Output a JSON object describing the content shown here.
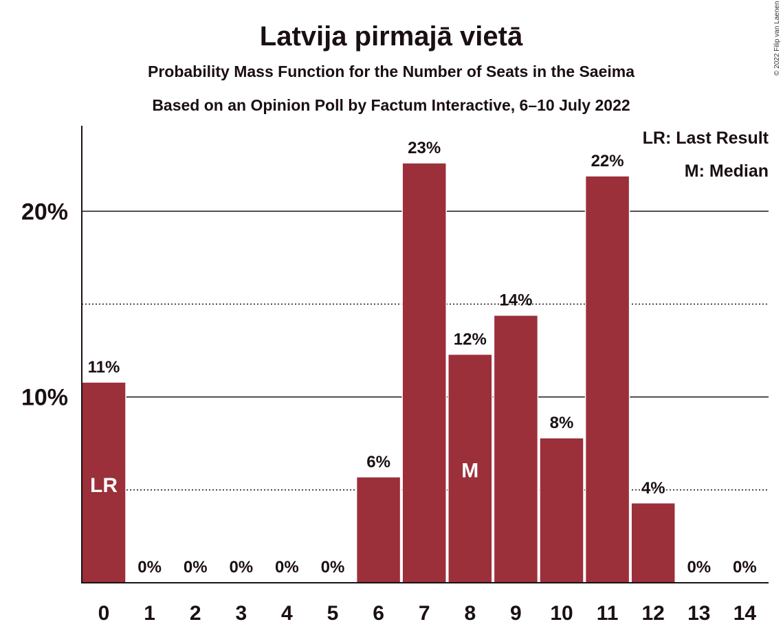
{
  "chart_data": {
    "type": "bar",
    "title": "Latvija pirmajā vietā",
    "subtitle": "Probability Mass Function for the Number of Seats in the Saeima",
    "subtitle2": "Based on an Opinion Poll by Factum Interactive, 6–10 July 2022",
    "categories": [
      "0",
      "1",
      "2",
      "3",
      "4",
      "5",
      "6",
      "7",
      "8",
      "9",
      "10",
      "11",
      "12",
      "13",
      "14"
    ],
    "values": [
      10.8,
      0,
      0,
      0,
      0,
      0,
      5.7,
      22.6,
      12.3,
      14.4,
      7.8,
      21.9,
      4.3,
      0,
      0
    ],
    "value_labels": [
      "11%",
      "0%",
      "0%",
      "0%",
      "0%",
      "0%",
      "6%",
      "23%",
      "12%",
      "14%",
      "8%",
      "22%",
      "4%",
      "0%",
      "0%"
    ],
    "ylim": [
      0,
      24.6
    ],
    "yticks": [
      {
        "value": 10,
        "label": "10%"
      },
      {
        "value": 20,
        "label": "20%"
      }
    ],
    "minor_gridlines": [
      5,
      15
    ],
    "bar_color": "#9b2f3a",
    "markers": [
      {
        "category": "0",
        "label": "LR"
      },
      {
        "category": "8",
        "label": "M"
      }
    ],
    "legend": [
      "LR: Last Result",
      "M: Median"
    ],
    "legend_position": "top-right",
    "copyright": "© 2022 Filip van Laenen"
  }
}
